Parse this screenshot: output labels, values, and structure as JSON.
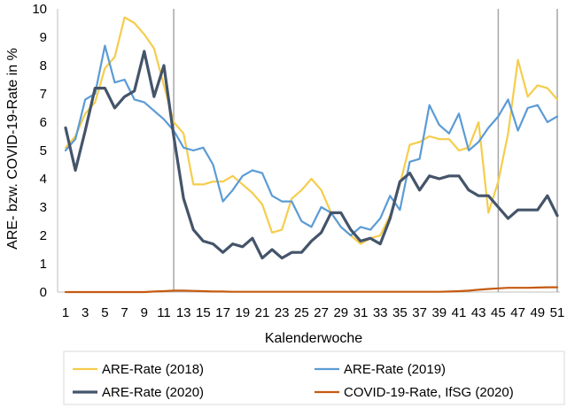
{
  "chart_data": {
    "type": "line",
    "xlabel": "Kalenderwoche",
    "ylabel": "ARE- bzw. COVID-19-Rate in %",
    "ylim": [
      0,
      10
    ],
    "xlim": [
      1,
      51
    ],
    "yticks": [
      "0",
      "1",
      "2",
      "3",
      "4",
      "5",
      "6",
      "7",
      "8",
      "9",
      "10"
    ],
    "x": [
      1,
      2,
      3,
      4,
      5,
      6,
      7,
      8,
      9,
      10,
      11,
      12,
      13,
      14,
      15,
      16,
      17,
      18,
      19,
      20,
      21,
      22,
      23,
      24,
      25,
      26,
      27,
      28,
      29,
      30,
      31,
      32,
      33,
      34,
      35,
      36,
      37,
      38,
      39,
      40,
      41,
      42,
      43,
      44,
      45,
      46,
      47,
      48,
      49,
      50,
      51
    ],
    "xtick_labels": [
      "1",
      "3",
      "5",
      "7",
      "9",
      "11",
      "13",
      "15",
      "17",
      "19",
      "21",
      "23",
      "25",
      "27",
      "29",
      "31",
      "33",
      "35",
      "37",
      "39",
      "41",
      "43",
      "45",
      "47",
      "49",
      "51"
    ],
    "reference_lines_x": [
      12,
      45,
      51
    ],
    "grid": false,
    "legend_position": "bottom",
    "series": [
      {
        "name": "ARE-Rate (2018)",
        "color": "#f5cd4c",
        "values": [
          5.1,
          5.5,
          6.3,
          6.7,
          7.9,
          8.3,
          9.7,
          9.5,
          9.1,
          8.6,
          7.3,
          6.0,
          5.6,
          3.8,
          3.8,
          3.9,
          3.9,
          4.1,
          3.8,
          3.5,
          3.1,
          2.1,
          2.2,
          3.3,
          3.6,
          4.0,
          3.6,
          2.8,
          2.3,
          2.0,
          1.7,
          1.9,
          2.0,
          2.7,
          3.8,
          5.2,
          5.3,
          5.5,
          5.4,
          5.4,
          5.0,
          5.1,
          6.0,
          2.8,
          3.9,
          5.6,
          8.2,
          6.9,
          7.3,
          7.2,
          6.8
        ]
      },
      {
        "name": "ARE-Rate (2019)",
        "color": "#5b9bd5",
        "values": [
          5.0,
          5.4,
          6.8,
          7.0,
          8.7,
          7.4,
          7.5,
          6.8,
          6.7,
          6.4,
          6.1,
          5.7,
          5.1,
          5.0,
          5.1,
          4.5,
          3.2,
          3.6,
          4.1,
          4.3,
          4.2,
          3.4,
          3.2,
          3.2,
          2.5,
          2.3,
          3.0,
          2.8,
          2.3,
          2.0,
          2.3,
          2.2,
          2.6,
          3.4,
          2.9,
          4.6,
          4.7,
          6.6,
          5.9,
          5.6,
          6.3,
          5.0,
          5.3,
          5.8,
          6.2,
          6.8,
          5.7,
          6.5,
          6.6,
          6.0,
          6.2
        ]
      },
      {
        "name": "ARE-Rate (2020)",
        "color": "#44546a",
        "values": [
          5.8,
          4.3,
          5.7,
          7.2,
          7.2,
          6.5,
          6.9,
          7.1,
          8.5,
          6.9,
          8.0,
          5.5,
          3.3,
          2.2,
          1.8,
          1.7,
          1.4,
          1.7,
          1.6,
          1.9,
          1.2,
          1.5,
          1.2,
          1.4,
          1.4,
          1.8,
          2.1,
          2.8,
          2.8,
          2.2,
          1.8,
          1.9,
          1.7,
          2.6,
          3.9,
          4.2,
          3.6,
          4.1,
          4.0,
          4.1,
          4.1,
          3.6,
          3.4,
          3.4,
          3.0,
          2.6,
          2.9,
          2.9,
          2.9,
          3.4,
          2.7
        ]
      },
      {
        "name": "COVID-19-Rate, IfSG (2020)",
        "color": "#c55a11",
        "values": [
          0,
          0,
          0,
          0,
          0,
          0,
          0,
          0,
          0,
          0.02,
          0.03,
          0.05,
          0.05,
          0.04,
          0.03,
          0.02,
          0.02,
          0.01,
          0.01,
          0.01,
          0.01,
          0.01,
          0.01,
          0.01,
          0.01,
          0.01,
          0.01,
          0.01,
          0.01,
          0.01,
          0.01,
          0.01,
          0.01,
          0.01,
          0.01,
          0.01,
          0.01,
          0.01,
          0.01,
          0.02,
          0.03,
          0.05,
          0.08,
          0.11,
          0.13,
          0.15,
          0.15,
          0.15,
          0.16,
          0.17,
          0.17
        ]
      }
    ]
  }
}
